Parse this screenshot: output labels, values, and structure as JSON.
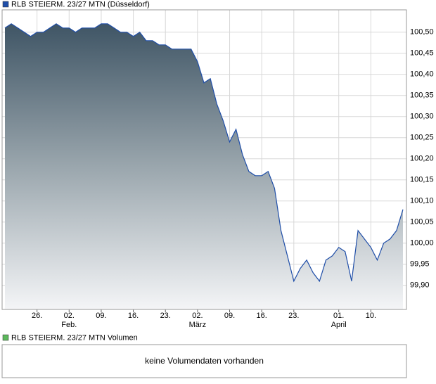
{
  "chart_data": {
    "type": "area",
    "series": [
      {
        "name": "RLB STEIERM. 23/27 MTN (Düsseldorf)",
        "color": "#1f4ea8",
        "values": [
          100.51,
          100.52,
          100.51,
          100.5,
          100.49,
          100.5,
          100.5,
          100.51,
          100.52,
          100.51,
          100.51,
          100.5,
          100.51,
          100.51,
          100.51,
          100.52,
          100.52,
          100.51,
          100.5,
          100.5,
          100.49,
          100.5,
          100.48,
          100.48,
          100.47,
          100.47,
          100.46,
          100.46,
          100.46,
          100.46,
          100.43,
          100.38,
          100.39,
          100.33,
          100.29,
          100.24,
          100.27,
          100.21,
          100.17,
          100.16,
          100.16,
          100.17,
          100.13,
          100.03,
          99.97,
          99.91,
          99.94,
          99.96,
          99.93,
          99.91,
          99.96,
          99.97,
          99.99,
          99.98,
          99.91,
          100.03,
          100.01,
          99.99,
          99.96,
          100.0,
          100.01,
          100.03,
          100.08
        ]
      }
    ],
    "categories": [
      null,
      null,
      null,
      null,
      null,
      "26.",
      null,
      null,
      null,
      null,
      "02.",
      null,
      null,
      null,
      null,
      "09.",
      null,
      null,
      null,
      null,
      "16.",
      null,
      null,
      null,
      null,
      "23.",
      null,
      null,
      null,
      null,
      "02.",
      null,
      null,
      null,
      null,
      "09.",
      null,
      null,
      null,
      null,
      "16.",
      null,
      null,
      null,
      null,
      "23.",
      null,
      null,
      null,
      null,
      null,
      null,
      "01.",
      null,
      null,
      null,
      null,
      "10.",
      null,
      null,
      null,
      null,
      null
    ],
    "category_sublabels": [
      null,
      null,
      null,
      null,
      null,
      null,
      null,
      null,
      null,
      null,
      "Feb.",
      null,
      null,
      null,
      null,
      null,
      null,
      null,
      null,
      null,
      null,
      null,
      null,
      null,
      null,
      null,
      null,
      null,
      null,
      null,
      "März",
      null,
      null,
      null,
      null,
      null,
      null,
      null,
      null,
      null,
      null,
      null,
      null,
      null,
      null,
      null,
      null,
      null,
      null,
      null,
      null,
      null,
      "April",
      null,
      null,
      null,
      null,
      null,
      null,
      null,
      null,
      null,
      null
    ],
    "ylim": [
      99.843,
      100.553
    ],
    "yticks": [
      {
        "value": 99.9,
        "label": "99,90"
      },
      {
        "value": 99.95,
        "label": "99,95"
      },
      {
        "value": 100.0,
        "label": "100,00"
      },
      {
        "value": 100.05,
        "label": "100,05"
      },
      {
        "value": 100.1,
        "label": "100,10"
      },
      {
        "value": 100.15,
        "label": "100,15"
      },
      {
        "value": 100.2,
        "label": "100,20"
      },
      {
        "value": 100.25,
        "label": "100,25"
      },
      {
        "value": 100.3,
        "label": "100,30"
      },
      {
        "value": 100.35,
        "label": "100,35"
      },
      {
        "value": 100.4,
        "label": "100,40"
      },
      {
        "value": 100.45,
        "label": "100,45"
      },
      {
        "value": 100.5,
        "label": "100,50"
      }
    ],
    "grid": true
  },
  "volume_panel": {
    "legend": "RLB STEIERM. 23/27 MTN Volumen",
    "legend_color": "#5cb85c",
    "message": "keine Volumendaten vorhanden"
  }
}
